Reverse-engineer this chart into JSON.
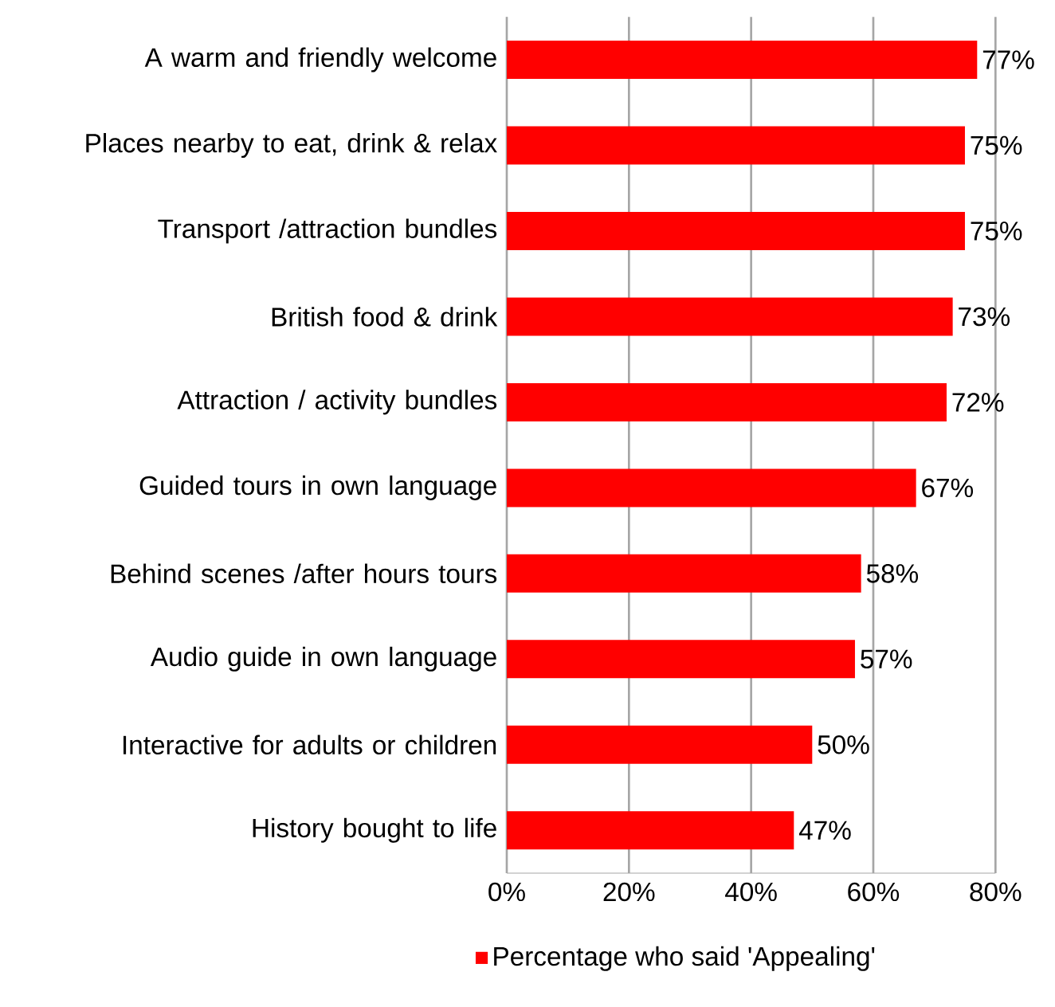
{
  "chart_data": {
    "type": "bar",
    "orientation": "horizontal",
    "categories": [
      "A warm and friendly welcome",
      "Places nearby to eat, drink & relax",
      "Transport /attraction bundles",
      "British food & drink",
      "Attraction / activity bundles",
      "Guided tours in own language",
      "Behind  scenes /after hours tours",
      "Audio guide in own language",
      "Interactive for adults or children",
      "History bought to life"
    ],
    "series": [
      {
        "name": "Percentage who said 'Appealing'",
        "color": "#ff0000",
        "values": [
          77,
          75,
          75,
          73,
          72,
          67,
          58,
          57,
          50,
          47
        ],
        "value_labels": [
          "77%",
          "75%",
          "75%",
          "73%",
          "72%",
          "67%",
          "58%",
          "57%",
          "50%",
          "47%"
        ]
      }
    ],
    "xlim": [
      0,
      80
    ],
    "xticks": [
      {
        "value": 0,
        "label": "0%"
      },
      {
        "value": 20,
        "label": "20%"
      },
      {
        "value": 40,
        "label": "40%"
      },
      {
        "value": 60,
        "label": "60%"
      },
      {
        "value": 80,
        "label": "80%"
      }
    ],
    "grid": "x",
    "legend": "bottom"
  }
}
